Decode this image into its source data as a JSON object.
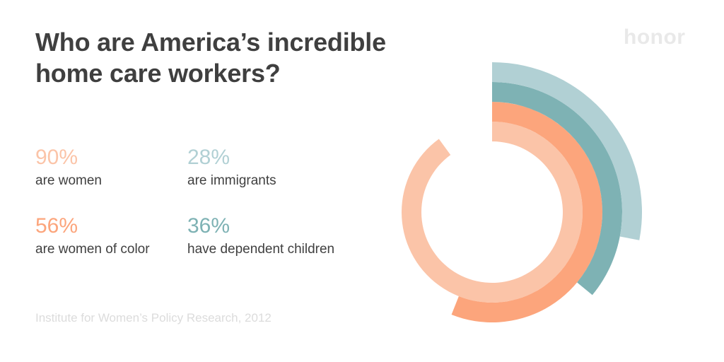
{
  "title": "Who are America’s incredible home care workers?",
  "brand": "honor",
  "source": "Institute for Women’s Policy Research, 2012",
  "colors": {
    "women": "#fbc4a8",
    "women_of_color": "#fca57c",
    "immigrants": "#b1d0d4",
    "dependent_children": "#7eb2b4",
    "title": "#3f3f3f",
    "muted": "#dcdcdc"
  },
  "stats": [
    {
      "key": "women",
      "value": "90%",
      "label": "are women"
    },
    {
      "key": "immigrants",
      "value": "28%",
      "label": "are immigrants"
    },
    {
      "key": "women_of_color",
      "value": "56%",
      "label": "are women of color"
    },
    {
      "key": "dependent_children",
      "value": "36%",
      "label": "have dependent children"
    }
  ],
  "chart_data": {
    "type": "pie",
    "subtype": "radial-bar",
    "unit": "%",
    "categories": [
      "are women",
      "are women of color",
      "have dependent children",
      "are immigrants"
    ],
    "values": [
      90,
      56,
      36,
      28
    ],
    "max": 100
  }
}
